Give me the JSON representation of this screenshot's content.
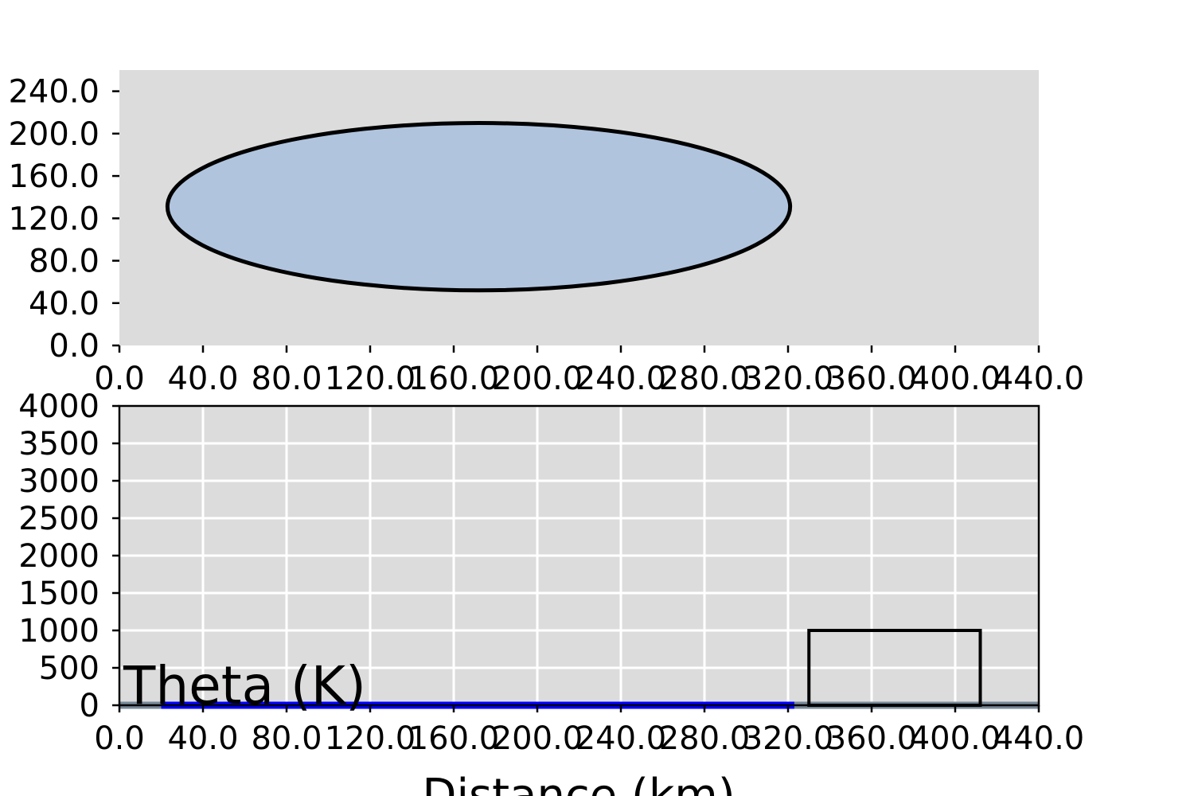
{
  "chart_data": [
    {
      "type": "shape",
      "xlabel": "",
      "ylabel": "",
      "xlim": [
        0,
        440
      ],
      "ylim": [
        0,
        260
      ],
      "x_ticks": [
        0,
        40,
        80,
        120,
        160,
        200,
        240,
        280,
        320,
        360,
        400,
        440
      ],
      "x_tick_labels": [
        "0.0",
        "40.0",
        "80.0",
        "120.0",
        "160.0",
        "200.0",
        "240.0",
        "280.0",
        "320.0",
        "360.0",
        "400.0",
        "440.0"
      ],
      "y_ticks": [
        0,
        40,
        80,
        120,
        160,
        200,
        240
      ],
      "y_tick_labels": [
        "0.0",
        "40.0",
        "80.0",
        "120.0",
        "160.0",
        "200.0",
        "240.0"
      ],
      "grid": false,
      "background": "#dcdcdc",
      "ellipse": {
        "cx": 172,
        "cy": 131,
        "rx": 149,
        "ry": 79,
        "fill": "#b0c4de",
        "stroke": "#000000"
      }
    },
    {
      "type": "line",
      "xlabel": "Distance (km)",
      "ylabel": "",
      "xlim": [
        0,
        440
      ],
      "ylim": [
        0,
        4000
      ],
      "x_ticks": [
        0,
        40,
        80,
        120,
        160,
        200,
        240,
        280,
        320,
        360,
        400,
        440
      ],
      "x_tick_labels": [
        "0.0",
        "40.0",
        "80.0",
        "120.0",
        "160.0",
        "200.0",
        "240.0",
        "280.0",
        "320.0",
        "360.0",
        "400.0",
        "440.0"
      ],
      "y_ticks": [
        0,
        500,
        1000,
        1500,
        2000,
        2500,
        3000,
        3500,
        4000
      ],
      "y_tick_labels": [
        "0",
        "500",
        "1000",
        "1500",
        "2000",
        "2500",
        "3000",
        "3500",
        "4000"
      ],
      "grid": true,
      "background": "#dcdcdc",
      "annotation": "Theta (K)",
      "series": [
        {
          "x": [
            20,
            323
          ],
          "y": [
            0,
            0
          ],
          "color": "#0000ff"
        }
      ],
      "ground": {
        "y": 0,
        "color": "#778899"
      },
      "rectangle": {
        "x0": 330,
        "x1": 412,
        "y0": 0,
        "y1": 1000,
        "stroke": "#000000"
      }
    }
  ]
}
